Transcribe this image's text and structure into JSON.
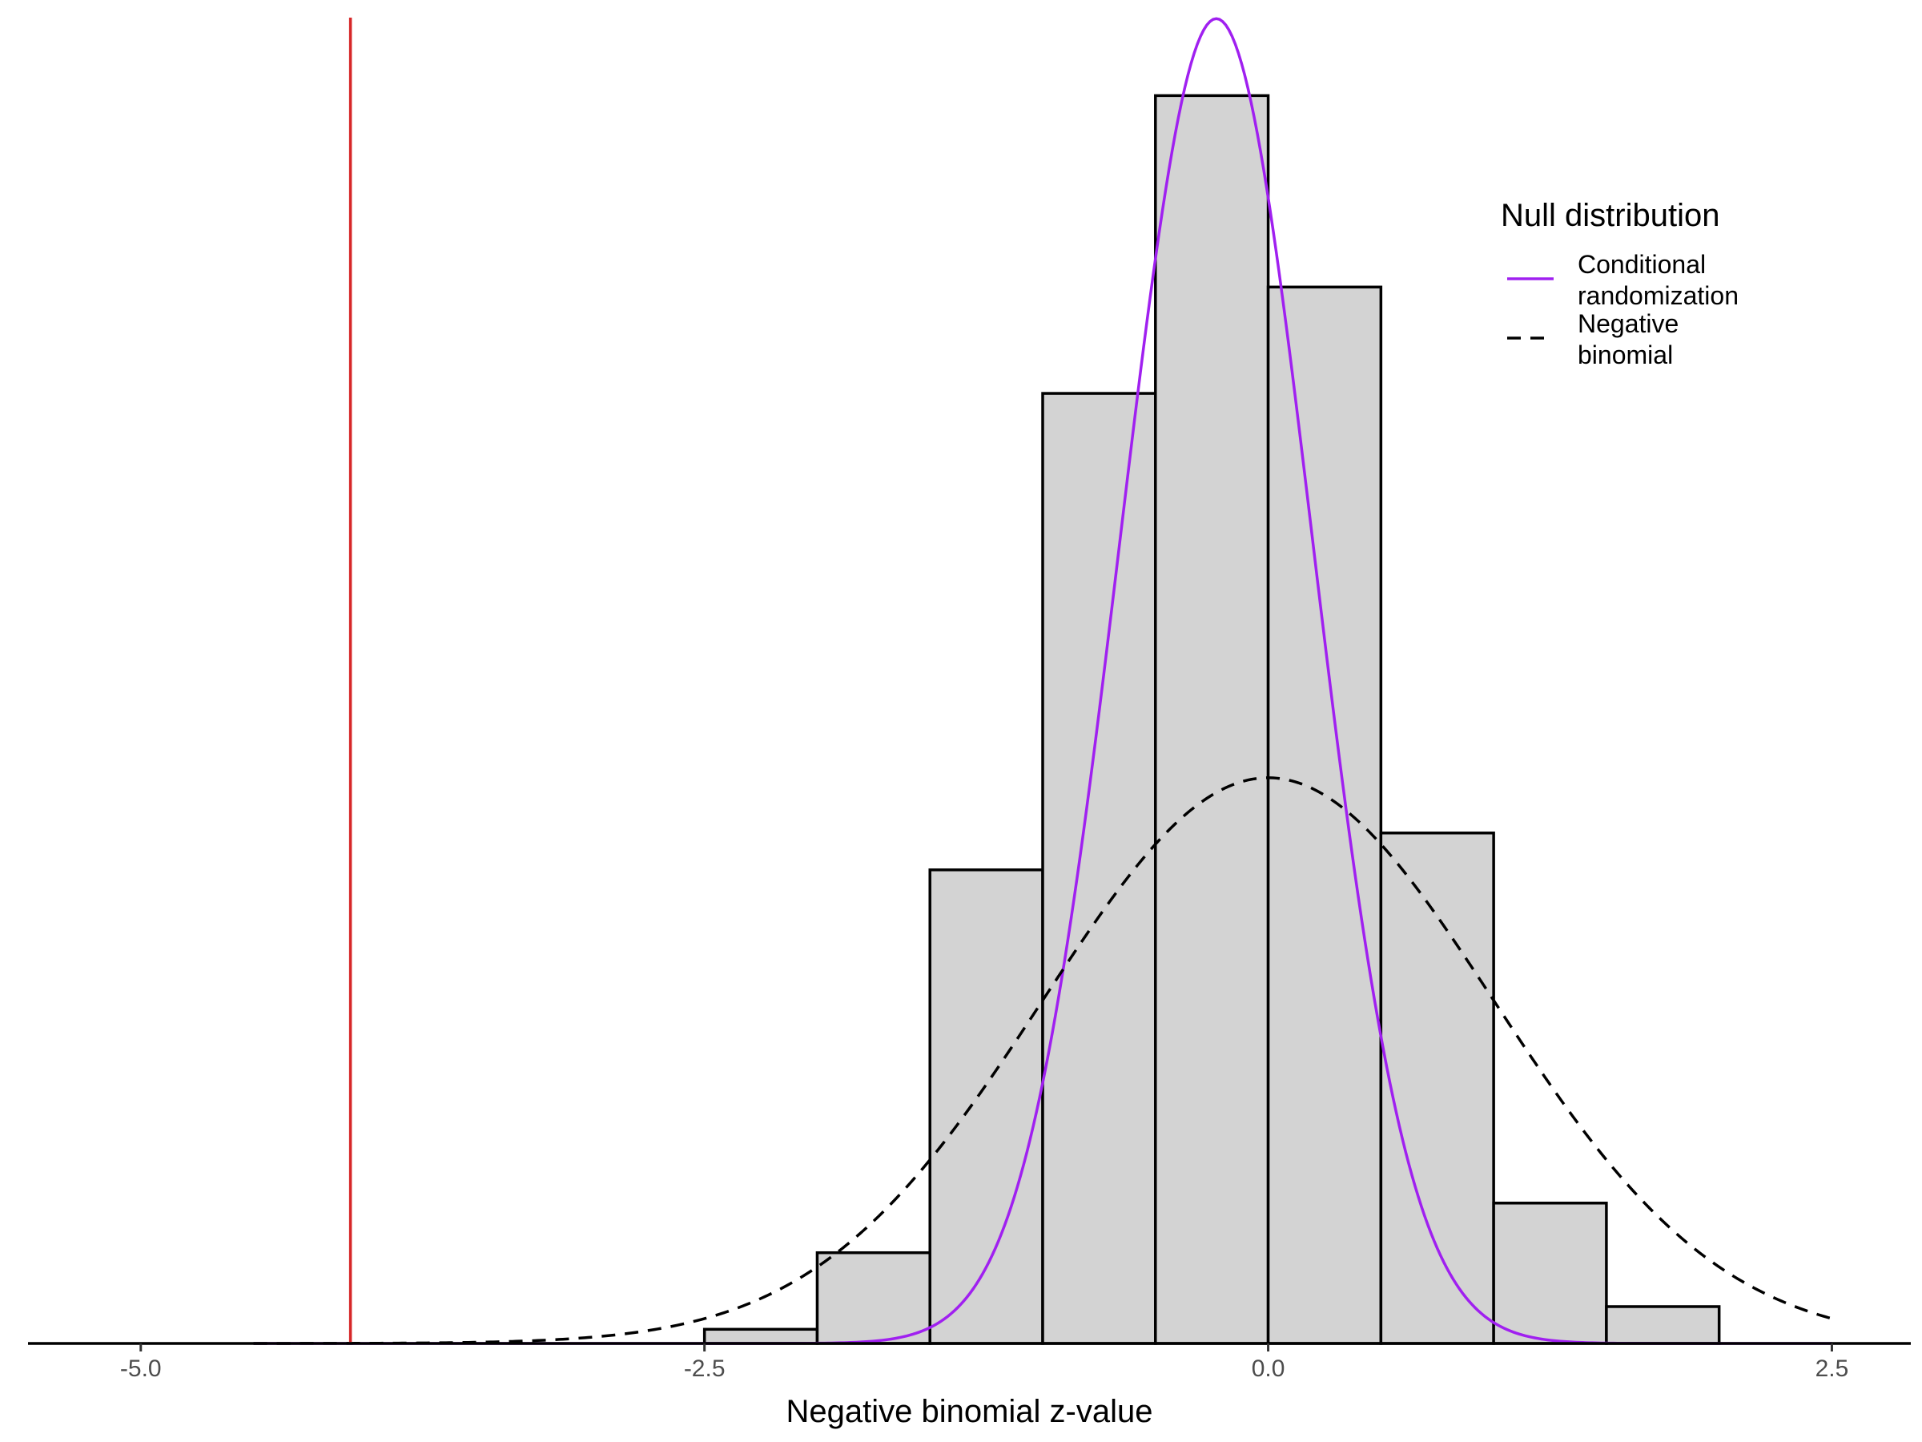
{
  "chart_data": {
    "type": "bar",
    "title": "",
    "xlabel": "Negative binomial z-value",
    "ylabel": "",
    "xlim": [
      -5.5,
      2.85
    ],
    "ylim": [
      0,
      0.935
    ],
    "x_ticks": [
      -5.0,
      -2.5,
      0.0,
      2.5
    ],
    "x_tick_labels": [
      "-5.0",
      "-2.5",
      "0.0",
      "2.5"
    ],
    "grid": false,
    "histogram": {
      "fill": "#d3d3d3",
      "outline": "#000000",
      "bins": [
        {
          "x0": -2.5,
          "x1": -2.0,
          "density": 0.01
        },
        {
          "x0": -2.0,
          "x1": -1.5,
          "density": 0.064
        },
        {
          "x0": -1.5,
          "x1": -1.0,
          "density": 0.334
        },
        {
          "x0": -1.0,
          "x1": -0.5,
          "density": 0.67
        },
        {
          "x0": -0.5,
          "x1": 0.0,
          "density": 0.88
        },
        {
          "x0": 0.0,
          "x1": 0.5,
          "density": 0.745
        },
        {
          "x0": 0.5,
          "x1": 1.0,
          "density": 0.36
        },
        {
          "x0": 1.0,
          "x1": 1.5,
          "density": 0.099
        },
        {
          "x0": 1.5,
          "x1": 2.0,
          "density": 0.026
        }
      ]
    },
    "series": [
      {
        "name": "Conditional randomization",
        "kind": "normal-density",
        "mean": -0.23,
        "sd": 0.427,
        "x_range": [
          -4.5,
          2.5
        ],
        "color": "#a020f0",
        "dash": "solid"
      },
      {
        "name": "Negative binomial",
        "kind": "normal-density",
        "mean": 0.0,
        "sd": 1.0,
        "x_range": [
          -4.5,
          2.5
        ],
        "color": "#000000",
        "dash": "dashed"
      }
    ],
    "reference_line": {
      "x": -4.07,
      "color": "#d62728"
    },
    "legend": {
      "title": "Null distribution",
      "placement": "top-right",
      "items": [
        {
          "line1": "Conditional",
          "line2": "randomization",
          "color": "#a020f0",
          "dash": "solid"
        },
        {
          "line1": "Negative",
          "line2": "binomial",
          "color": "#000000",
          "dash": "dashed"
        }
      ]
    }
  }
}
